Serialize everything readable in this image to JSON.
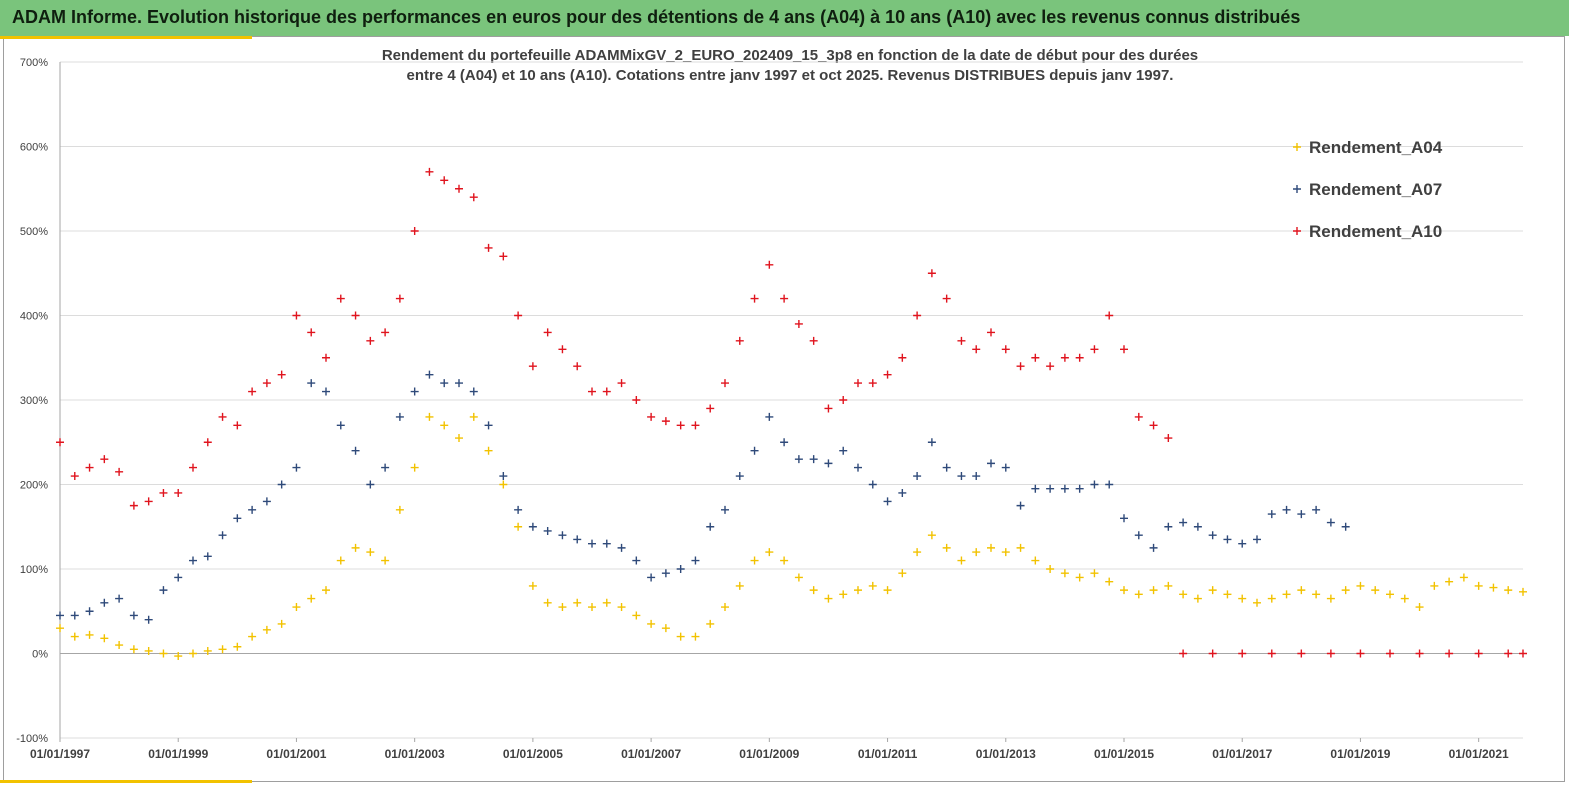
{
  "banner": {
    "title": "ADAM Informe. Evolution historique des performances en euros pour des détentions de 4 ans (A04) à 10 ans (A10) avec les revenus connus distribués",
    "background": "#7ac47c"
  },
  "chart_data": {
    "type": "scatter",
    "title_line1": "Rendement du portefeuille ADAMMixGV_2_EURO_202409_15_3p8 en fonction de la date de début pour des durées",
    "title_line2": "entre 4 (A04) et 10 ans (A10). Cotations entre janv 1997 et oct 2025. Revenus DISTRIBUES depuis janv 1997.",
    "xlabel": "",
    "ylabel": "",
    "xlim": [
      "1997-01-01",
      "2021-10-01"
    ],
    "ylim": [
      -100,
      700
    ],
    "x_unit": "year (decimal)",
    "y_unit": "%",
    "grid": "horizontal",
    "legend_position": "top-right",
    "x_ticks": [
      "01/01/1997",
      "01/01/1999",
      "01/01/2001",
      "01/01/2003",
      "01/01/2005",
      "01/01/2007",
      "01/01/2009",
      "01/01/2011",
      "01/01/2013",
      "01/01/2015",
      "01/01/2017",
      "01/01/2019",
      "01/01/2021"
    ],
    "y_ticks": [
      "-100%",
      "0%",
      "100%",
      "200%",
      "300%",
      "400%",
      "500%",
      "600%",
      "700%"
    ],
    "series": [
      {
        "name": "Rendement_A04",
        "color": "#f2c200",
        "points": [
          [
            1997.0,
            30
          ],
          [
            1997.25,
            20
          ],
          [
            1997.5,
            22
          ],
          [
            1997.75,
            18
          ],
          [
            1998.0,
            10
          ],
          [
            1998.25,
            5
          ],
          [
            1998.5,
            3
          ],
          [
            1998.75,
            0
          ],
          [
            1999.0,
            -3
          ],
          [
            1999.25,
            0
          ],
          [
            1999.5,
            3
          ],
          [
            1999.75,
            5
          ],
          [
            2000.0,
            8
          ],
          [
            2000.25,
            20
          ],
          [
            2000.5,
            28
          ],
          [
            2000.75,
            35
          ],
          [
            2001.0,
            55
          ],
          [
            2001.25,
            65
          ],
          [
            2001.5,
            75
          ],
          [
            2001.75,
            110
          ],
          [
            2002.0,
            125
          ],
          [
            2002.25,
            120
          ],
          [
            2002.5,
            110
          ],
          [
            2002.75,
            170
          ],
          [
            2003.0,
            220
          ],
          [
            2003.25,
            280
          ],
          [
            2003.5,
            270
          ],
          [
            2003.75,
            255
          ],
          [
            2004.0,
            280
          ],
          [
            2004.25,
            240
          ],
          [
            2004.5,
            200
          ],
          [
            2004.75,
            150
          ],
          [
            2005.0,
            80
          ],
          [
            2005.25,
            60
          ],
          [
            2005.5,
            55
          ],
          [
            2005.75,
            60
          ],
          [
            2006.0,
            55
          ],
          [
            2006.25,
            60
          ],
          [
            2006.5,
            55
          ],
          [
            2006.75,
            45
          ],
          [
            2007.0,
            35
          ],
          [
            2007.25,
            30
          ],
          [
            2007.5,
            20
          ],
          [
            2007.75,
            20
          ],
          [
            2008.0,
            35
          ],
          [
            2008.25,
            55
          ],
          [
            2008.5,
            80
          ],
          [
            2008.75,
            110
          ],
          [
            2009.0,
            120
          ],
          [
            2009.25,
            110
          ],
          [
            2009.5,
            90
          ],
          [
            2009.75,
            75
          ],
          [
            2010.0,
            65
          ],
          [
            2010.25,
            70
          ],
          [
            2010.5,
            75
          ],
          [
            2010.75,
            80
          ],
          [
            2011.0,
            75
          ],
          [
            2011.25,
            95
          ],
          [
            2011.5,
            120
          ],
          [
            2011.75,
            140
          ],
          [
            2012.0,
            125
          ],
          [
            2012.25,
            110
          ],
          [
            2012.5,
            120
          ],
          [
            2012.75,
            125
          ],
          [
            2013.0,
            120
          ],
          [
            2013.25,
            125
          ],
          [
            2013.5,
            110
          ],
          [
            2013.75,
            100
          ],
          [
            2014.0,
            95
          ],
          [
            2014.25,
            90
          ],
          [
            2014.5,
            95
          ],
          [
            2014.75,
            85
          ],
          [
            2015.0,
            75
          ],
          [
            2015.25,
            70
          ],
          [
            2015.5,
            75
          ],
          [
            2015.75,
            80
          ],
          [
            2016.0,
            70
          ],
          [
            2016.25,
            65
          ],
          [
            2016.5,
            75
          ],
          [
            2016.75,
            70
          ],
          [
            2017.0,
            65
          ],
          [
            2017.25,
            60
          ],
          [
            2017.5,
            65
          ],
          [
            2017.75,
            70
          ],
          [
            2018.0,
            75
          ],
          [
            2018.25,
            70
          ],
          [
            2018.5,
            65
          ],
          [
            2018.75,
            75
          ],
          [
            2019.0,
            80
          ],
          [
            2019.25,
            75
          ],
          [
            2019.5,
            70
          ],
          [
            2019.75,
            65
          ],
          [
            2020.0,
            55
          ],
          [
            2020.25,
            80
          ],
          [
            2020.5,
            85
          ],
          [
            2020.75,
            90
          ],
          [
            2021.0,
            80
          ],
          [
            2021.25,
            78
          ],
          [
            2021.5,
            75
          ],
          [
            2021.75,
            73
          ]
        ]
      },
      {
        "name": "Rendement_A07",
        "color": "#2f4a7a",
        "points": [
          [
            1997.0,
            45
          ],
          [
            1997.25,
            45
          ],
          [
            1997.5,
            50
          ],
          [
            1997.75,
            60
          ],
          [
            1998.0,
            65
          ],
          [
            1998.25,
            45
          ],
          [
            1998.5,
            40
          ],
          [
            1998.75,
            75
          ],
          [
            1999.0,
            90
          ],
          [
            1999.25,
            110
          ],
          [
            1999.5,
            115
          ],
          [
            1999.75,
            140
          ],
          [
            2000.0,
            160
          ],
          [
            2000.25,
            170
          ],
          [
            2000.5,
            180
          ],
          [
            2000.75,
            200
          ],
          [
            2001.0,
            220
          ],
          [
            2001.25,
            320
          ],
          [
            2001.5,
            310
          ],
          [
            2001.75,
            270
          ],
          [
            2002.0,
            240
          ],
          [
            2002.25,
            200
          ],
          [
            2002.5,
            220
          ],
          [
            2002.75,
            280
          ],
          [
            2003.0,
            310
          ],
          [
            2003.25,
            330
          ],
          [
            2003.5,
            320
          ],
          [
            2003.75,
            320
          ],
          [
            2004.0,
            310
          ],
          [
            2004.25,
            270
          ],
          [
            2004.5,
            210
          ],
          [
            2004.75,
            170
          ],
          [
            2005.0,
            150
          ],
          [
            2005.25,
            145
          ],
          [
            2005.5,
            140
          ],
          [
            2005.75,
            135
          ],
          [
            2006.0,
            130
          ],
          [
            2006.25,
            130
          ],
          [
            2006.5,
            125
          ],
          [
            2006.75,
            110
          ],
          [
            2007.0,
            90
          ],
          [
            2007.25,
            95
          ],
          [
            2007.5,
            100
          ],
          [
            2007.75,
            110
          ],
          [
            2008.0,
            150
          ],
          [
            2008.25,
            170
          ],
          [
            2008.5,
            210
          ],
          [
            2008.75,
            240
          ],
          [
            2009.0,
            280
          ],
          [
            2009.25,
            250
          ],
          [
            2009.5,
            230
          ],
          [
            2009.75,
            230
          ],
          [
            2010.0,
            225
          ],
          [
            2010.25,
            240
          ],
          [
            2010.5,
            220
          ],
          [
            2010.75,
            200
          ],
          [
            2011.0,
            180
          ],
          [
            2011.25,
            190
          ],
          [
            2011.5,
            210
          ],
          [
            2011.75,
            250
          ],
          [
            2012.0,
            220
          ],
          [
            2012.25,
            210
          ],
          [
            2012.5,
            210
          ],
          [
            2012.75,
            225
          ],
          [
            2013.0,
            220
          ],
          [
            2013.25,
            175
          ],
          [
            2013.5,
            195
          ],
          [
            2013.75,
            195
          ],
          [
            2014.0,
            195
          ],
          [
            2014.25,
            195
          ],
          [
            2014.5,
            200
          ],
          [
            2014.75,
            200
          ],
          [
            2015.0,
            160
          ],
          [
            2015.25,
            140
          ],
          [
            2015.5,
            125
          ],
          [
            2015.75,
            150
          ],
          [
            2016.0,
            155
          ],
          [
            2016.25,
            150
          ],
          [
            2016.5,
            140
          ],
          [
            2016.75,
            135
          ],
          [
            2017.0,
            130
          ],
          [
            2017.25,
            135
          ],
          [
            2017.5,
            165
          ],
          [
            2017.75,
            170
          ],
          [
            2018.0,
            165
          ],
          [
            2018.25,
            170
          ],
          [
            2018.5,
            155
          ],
          [
            2018.75,
            150
          ]
        ]
      },
      {
        "name": "Rendement_A10",
        "color": "#e0141e",
        "points": [
          [
            1997.0,
            250
          ],
          [
            1997.25,
            210
          ],
          [
            1997.5,
            220
          ],
          [
            1997.75,
            230
          ],
          [
            1998.0,
            215
          ],
          [
            1998.25,
            175
          ],
          [
            1998.5,
            180
          ],
          [
            1998.75,
            190
          ],
          [
            1999.0,
            190
          ],
          [
            1999.25,
            220
          ],
          [
            1999.5,
            250
          ],
          [
            1999.75,
            280
          ],
          [
            2000.0,
            270
          ],
          [
            2000.25,
            310
          ],
          [
            2000.5,
            320
          ],
          [
            2000.75,
            330
          ],
          [
            2001.0,
            400
          ],
          [
            2001.25,
            380
          ],
          [
            2001.5,
            350
          ],
          [
            2001.75,
            420
          ],
          [
            2002.0,
            400
          ],
          [
            2002.25,
            370
          ],
          [
            2002.5,
            380
          ],
          [
            2002.75,
            420
          ],
          [
            2003.0,
            500
          ],
          [
            2003.25,
            570
          ],
          [
            2003.5,
            560
          ],
          [
            2003.75,
            550
          ],
          [
            2004.0,
            540
          ],
          [
            2004.25,
            480
          ],
          [
            2004.5,
            470
          ],
          [
            2004.75,
            400
          ],
          [
            2005.0,
            340
          ],
          [
            2005.25,
            380
          ],
          [
            2005.5,
            360
          ],
          [
            2005.75,
            340
          ],
          [
            2006.0,
            310
          ],
          [
            2006.25,
            310
          ],
          [
            2006.5,
            320
          ],
          [
            2006.75,
            300
          ],
          [
            2007.0,
            280
          ],
          [
            2007.25,
            275
          ],
          [
            2007.5,
            270
          ],
          [
            2007.75,
            270
          ],
          [
            2008.0,
            290
          ],
          [
            2008.25,
            320
          ],
          [
            2008.5,
            370
          ],
          [
            2008.75,
            420
          ],
          [
            2009.0,
            460
          ],
          [
            2009.25,
            420
          ],
          [
            2009.5,
            390
          ],
          [
            2009.75,
            370
          ],
          [
            2010.0,
            290
          ],
          [
            2010.25,
            300
          ],
          [
            2010.5,
            320
          ],
          [
            2010.75,
            320
          ],
          [
            2011.0,
            330
          ],
          [
            2011.25,
            350
          ],
          [
            2011.5,
            400
          ],
          [
            2011.75,
            450
          ],
          [
            2012.0,
            420
          ],
          [
            2012.25,
            370
          ],
          [
            2012.5,
            360
          ],
          [
            2012.75,
            380
          ],
          [
            2013.0,
            360
          ],
          [
            2013.25,
            340
          ],
          [
            2013.5,
            350
          ],
          [
            2013.75,
            340
          ],
          [
            2014.0,
            350
          ],
          [
            2014.25,
            350
          ],
          [
            2014.5,
            360
          ],
          [
            2014.75,
            400
          ],
          [
            2015.0,
            360
          ],
          [
            2015.25,
            280
          ],
          [
            2015.5,
            270
          ],
          [
            2015.75,
            255
          ],
          [
            2016.0,
            0
          ],
          [
            2016.5,
            0
          ],
          [
            2017.0,
            0
          ],
          [
            2017.5,
            0
          ],
          [
            2018.0,
            0
          ],
          [
            2018.5,
            0
          ],
          [
            2019.0,
            0
          ],
          [
            2019.5,
            0
          ],
          [
            2020.0,
            0
          ],
          [
            2020.5,
            0
          ],
          [
            2021.0,
            0
          ],
          [
            2021.5,
            0
          ],
          [
            2021.75,
            0
          ]
        ]
      }
    ]
  }
}
